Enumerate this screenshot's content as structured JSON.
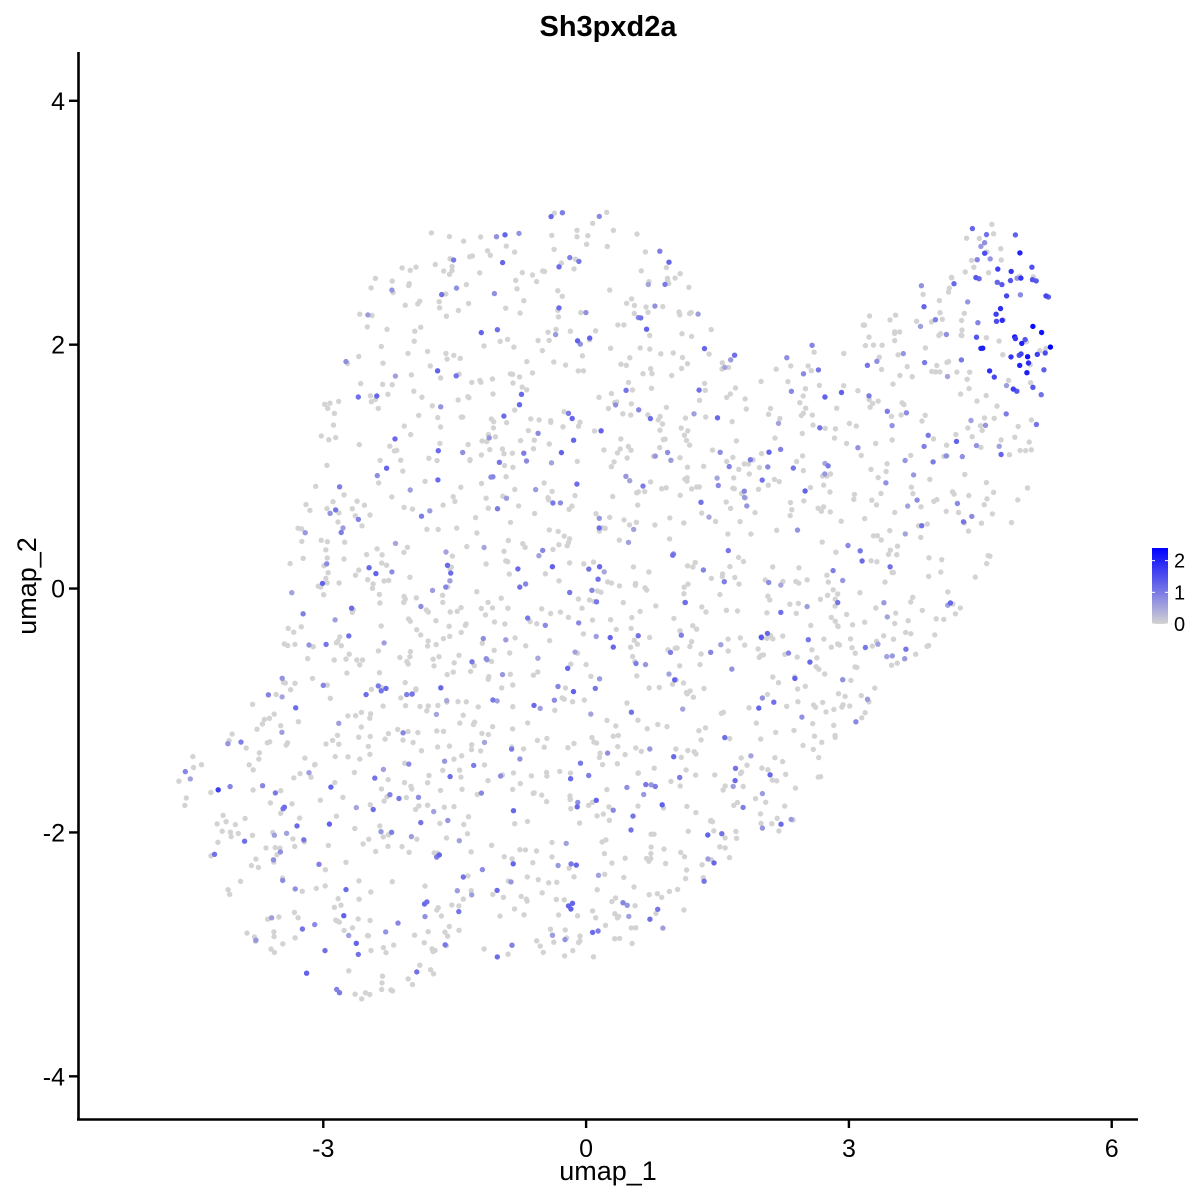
{
  "chart_data": {
    "type": "scatter",
    "title": "Sh3pxd2a",
    "xlabel": "umap_1",
    "ylabel": "umap_2",
    "xlim": [
      -5.8,
      6.3
    ],
    "ylim": [
      -4.35,
      4.4
    ],
    "x_ticks": [
      -3,
      0,
      3,
      6
    ],
    "y_ticks": [
      -4,
      -2,
      0,
      2,
      4
    ],
    "x_tick_labels": [
      "-3",
      "0",
      "3",
      "6"
    ],
    "y_tick_labels": [
      "-4",
      "-2",
      "0",
      "2",
      "4"
    ],
    "grid": false,
    "legend": {
      "placement": "right",
      "title": "",
      "labels": [
        "2",
        "1",
        "0"
      ],
      "breaks": [
        2,
        1,
        0
      ],
      "color_low": "#d3d3d3",
      "color_high": "#0000ff",
      "range": [
        0,
        2.4
      ]
    },
    "point_counts": {
      "total": 1900,
      "expressing_fraction": 0.22
    },
    "series": [
      {
        "points": [
          {
            "x": 5.3,
            "y": 1.98,
            "value": 2.4
          },
          {
            "x": 5.2,
            "y": 2.1,
            "value": 2.2
          },
          {
            "x": 5.1,
            "y": 2.15,
            "value": 2.3
          },
          {
            "x": 5.05,
            "y": 1.85,
            "value": 1.9
          },
          {
            "x": 4.95,
            "y": 1.83,
            "value": 2.0
          },
          {
            "x": 4.9,
            "y": 2.05,
            "value": 1.8
          },
          {
            "x": 4.75,
            "y": 2.2,
            "value": 1.9
          },
          {
            "x": 4.8,
            "y": 2.4,
            "value": 1.6
          },
          {
            "x": 4.7,
            "y": 2.62,
            "value": 1.7
          },
          {
            "x": 4.55,
            "y": 2.75,
            "value": 1.5
          },
          {
            "x": 4.45,
            "y": 2.55,
            "value": 1.4
          },
          {
            "x": 5.25,
            "y": 2.4,
            "value": 1.6
          },
          {
            "x": 5.15,
            "y": 1.92,
            "value": 1.7
          },
          {
            "x": 4.85,
            "y": 1.9,
            "value": 1.8
          },
          {
            "x": 5.1,
            "y": 1.65,
            "value": 1.4
          },
          {
            "x": 4.68,
            "y": 2.25,
            "value": 1.7
          },
          {
            "x": 4.9,
            "y": 2.9,
            "value": 1.3
          },
          {
            "x": 4.2,
            "y": 2.5,
            "value": 1.2
          },
          {
            "x": -4.2,
            "y": -1.65,
            "value": 1.7
          },
          {
            "x": -2.6,
            "y": -3.0,
            "value": 1.1
          },
          {
            "x": 2.0,
            "y": -0.4,
            "value": 1.4
          },
          {
            "x": 2.5,
            "y": 0.8,
            "value": 1.3
          },
          {
            "x": -0.4,
            "y": 3.05,
            "value": 1.2
          },
          {
            "x": 1.5,
            "y": 1.4,
            "value": 1.2
          }
        ]
      }
    ]
  }
}
